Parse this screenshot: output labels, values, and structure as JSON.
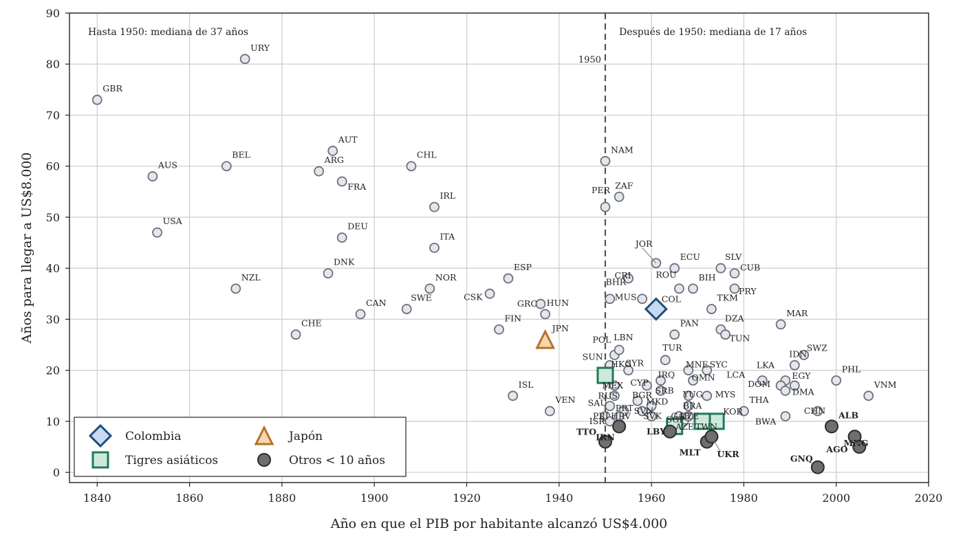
{
  "chart_data": {
    "type": "scatter",
    "xlabel": "Año en que el PIB por habitante alcanzó US$4.000",
    "ylabel": "Años para llegar a US$8.000",
    "xlim": [
      1834,
      2020
    ],
    "ylim": [
      -2,
      90
    ],
    "xticks": [
      1840,
      1860,
      1880,
      1900,
      1920,
      1940,
      1960,
      1980,
      2000,
      2020
    ],
    "yticks": [
      0,
      10,
      20,
      30,
      40,
      50,
      60,
      70,
      80,
      90
    ],
    "grid": true,
    "annotations": {
      "left_text": "Hasta 1950: mediana de 37 años",
      "right_text": "Después de 1950: mediana de 17 años",
      "vline_label": "1950",
      "vline_x": 1950
    },
    "legend": {
      "position": "bottom-left",
      "items": [
        {
          "key": "colombia",
          "label": "Colombia",
          "marker": "diamond"
        },
        {
          "key": "japan",
          "label": "Japón",
          "marker": "triangle"
        },
        {
          "key": "tigers",
          "label": "Tigres asiáticos",
          "marker": "square"
        },
        {
          "key": "others",
          "label": "Otros < 10 años",
          "marker": "circle-dark"
        }
      ]
    },
    "colors": {
      "base_fill": "#e3e6ec",
      "base_stroke": "#6b6f78",
      "colombia_fill": "#c7daf0",
      "colombia_stroke": "#1f4e79",
      "colombia_text": "#1f3b63",
      "japan_fill": "#f7d6ae",
      "japan_stroke": "#b5712a",
      "japan_text": "#b5712a",
      "tigers_fill": "#cfe8dc",
      "tigers_stroke": "#1f7a5a",
      "tigers_text": "#1f7a5a",
      "others_fill": "#6e6e6e",
      "others_stroke": "#2b2b2b"
    },
    "series": [
      {
        "name": "base",
        "points": [
          {
            "label": "GBR",
            "x": 1840,
            "y": 73
          },
          {
            "label": "URY",
            "x": 1872,
            "y": 81
          },
          {
            "label": "AUS",
            "x": 1852,
            "y": 58
          },
          {
            "label": "BEL",
            "x": 1868,
            "y": 60
          },
          {
            "label": "USA",
            "x": 1853,
            "y": 47
          },
          {
            "label": "NZL",
            "x": 1870,
            "y": 36
          },
          {
            "label": "AUT",
            "x": 1891,
            "y": 63
          },
          {
            "label": "ARG",
            "x": 1888,
            "y": 59
          },
          {
            "label": "FRA",
            "x": 1893,
            "y": 57
          },
          {
            "label": "DEU",
            "x": 1893,
            "y": 46
          },
          {
            "label": "DNK",
            "x": 1890,
            "y": 39
          },
          {
            "label": "CAN",
            "x": 1897,
            "y": 31
          },
          {
            "label": "CHE",
            "x": 1883,
            "y": 27
          },
          {
            "label": "CHL",
            "x": 1908,
            "y": 60
          },
          {
            "label": "IRL",
            "x": 1913,
            "y": 52
          },
          {
            "label": "ITA",
            "x": 1913,
            "y": 44
          },
          {
            "label": "NOR",
            "x": 1912,
            "y": 36
          },
          {
            "label": "SWE",
            "x": 1907,
            "y": 32
          },
          {
            "label": "CSK",
            "x": 1925,
            "y": 35
          },
          {
            "label": "ESP",
            "x": 1929,
            "y": 38
          },
          {
            "label": "HUN",
            "x": 1937,
            "y": 31
          },
          {
            "label": "GRC",
            "x": 1936,
            "y": 33
          },
          {
            "label": "FIN",
            "x": 1927,
            "y": 28
          },
          {
            "label": "ISL",
            "x": 1930,
            "y": 15
          },
          {
            "label": "VEN",
            "x": 1938,
            "y": 12
          },
          {
            "label": "NAM",
            "x": 1950,
            "y": 61
          },
          {
            "label": "PER",
            "x": 1950,
            "y": 52
          },
          {
            "label": "ZAF",
            "x": 1953,
            "y": 54
          },
          {
            "label": "BHR",
            "x": 1951,
            "y": 34
          },
          {
            "label": "CRI",
            "x": 1955,
            "y": 38
          },
          {
            "label": "MUS",
            "x": 1958,
            "y": 34
          },
          {
            "label": "JOR",
            "x": 1961,
            "y": 41
          },
          {
            "label": "ECU",
            "x": 1965,
            "y": 40
          },
          {
            "label": "ROU",
            "x": 1966,
            "y": 36
          },
          {
            "label": "BIH",
            "x": 1969,
            "y": 36
          },
          {
            "label": "SLV",
            "x": 1975,
            "y": 40
          },
          {
            "label": "CUB",
            "x": 1978,
            "y": 39
          },
          {
            "label": "PRY",
            "x": 1978,
            "y": 36
          },
          {
            "label": "TKM",
            "x": 1973,
            "y": 32
          },
          {
            "label": "PAN",
            "x": 1965,
            "y": 27
          },
          {
            "label": "DZA",
            "x": 1975,
            "y": 28
          },
          {
            "label": "TUN",
            "x": 1976,
            "y": 27
          },
          {
            "label": "MAR",
            "x": 1988,
            "y": 29
          },
          {
            "label": "SWZ",
            "x": 1993,
            "y": 23
          },
          {
            "label": "IDN",
            "x": 1991,
            "y": 21
          },
          {
            "label": "PHL",
            "x": 2000,
            "y": 18
          },
          {
            "label": "VNM",
            "x": 2007,
            "y": 15
          },
          {
            "label": "LKA",
            "x": 1989,
            "y": 18
          },
          {
            "label": "LCA",
            "x": 1984,
            "y": 18
          },
          {
            "label": "DOM",
            "x": 1988,
            "y": 17
          },
          {
            "label": "EGY",
            "x": 1991,
            "y": 17
          },
          {
            "label": "DMA",
            "x": 1989,
            "y": 16
          },
          {
            "label": "BWA",
            "x": 1989,
            "y": 11
          },
          {
            "label": "CHN",
            "x": 1996,
            "y": 12
          },
          {
            "label": "THA",
            "x": 1980,
            "y": 12
          },
          {
            "label": "POL",
            "x": 1952,
            "y": 23
          },
          {
            "label": "LBN",
            "x": 1953,
            "y": 24
          },
          {
            "label": "SYR",
            "x": 1955,
            "y": 20
          },
          {
            "label": "SUN",
            "x": 1951,
            "y": 21
          },
          {
            "label": "TUR",
            "x": 1963,
            "y": 22
          },
          {
            "label": "MNE",
            "x": 1968,
            "y": 20
          },
          {
            "label": "SYC",
            "x": 1972,
            "y": 20
          },
          {
            "label": "IRQ",
            "x": 1962,
            "y": 18
          },
          {
            "label": "CYP",
            "x": 1959,
            "y": 17
          },
          {
            "label": "OMN",
            "x": 1969,
            "y": 18
          },
          {
            "label": "MEX",
            "x": 1952,
            "y": 17
          },
          {
            "label": "RUS",
            "x": 1952,
            "y": 15
          },
          {
            "label": "SRB",
            "x": 1962,
            "y": 16
          },
          {
            "label": "YUG",
            "x": 1968,
            "y": 15
          },
          {
            "label": "MYS",
            "x": 1972,
            "y": 15
          },
          {
            "label": "BRA",
            "x": 1968,
            "y": 13
          },
          {
            "label": "BGR",
            "x": 1957,
            "y": 14
          },
          {
            "label": "MKD",
            "x": 1960,
            "y": 13
          },
          {
            "label": "SAU",
            "x": 1951,
            "y": 13
          },
          {
            "label": "PRT",
            "x": 1954,
            "y": 12
          },
          {
            "label": "SVN",
            "x": 1958,
            "y": 12
          },
          {
            "label": "PRI",
            "x": 1950,
            "y": 11
          },
          {
            "label": "ISR",
            "x": 1951,
            "y": 10
          },
          {
            "label": "HRV",
            "x": 1953,
            "y": 11
          },
          {
            "label": "SVK",
            "x": 1960,
            "y": 11
          },
          {
            "label": "AZE",
            "x": 1967,
            "y": 10
          },
          {
            "label": "CZE",
            "x": 1968,
            "y": 11
          },
          {
            "label": "GAB",
            "x": 1966,
            "y": 11
          }
        ]
      },
      {
        "name": "Colombia",
        "points": [
          {
            "label": "COL",
            "x": 1961,
            "y": 32
          }
        ]
      },
      {
        "name": "Japón",
        "points": [
          {
            "label": "JPN",
            "x": 1937,
            "y": 26
          }
        ]
      },
      {
        "name": "Tigres asiáticos",
        "points": [
          {
            "label": "HKG",
            "x": 1950,
            "y": 19
          },
          {
            "label": "SGP",
            "x": 1965,
            "y": 9
          },
          {
            "label": "KOR",
            "x": 1974,
            "y": 10
          },
          {
            "label": "TWN",
            "x": 1971,
            "y": 10
          }
        ]
      },
      {
        "name": "Otros < 10 años",
        "points": [
          {
            "label": "TTO",
            "x": 1950,
            "y": 6
          },
          {
            "label": "IRN",
            "x": 1953,
            "y": 9
          },
          {
            "label": "LBY",
            "x": 1964,
            "y": 8
          },
          {
            "label": "MLT",
            "x": 1972,
            "y": 6
          },
          {
            "label": "UKR",
            "x": 1973,
            "y": 7
          },
          {
            "label": "ALB",
            "x": 1999,
            "y": 9
          },
          {
            "label": "MNG",
            "x": 2004,
            "y": 7
          },
          {
            "label": "AGO",
            "x": 2005,
            "y": 5
          },
          {
            "label": "GNQ",
            "x": 1996,
            "y": 1
          }
        ]
      }
    ]
  }
}
